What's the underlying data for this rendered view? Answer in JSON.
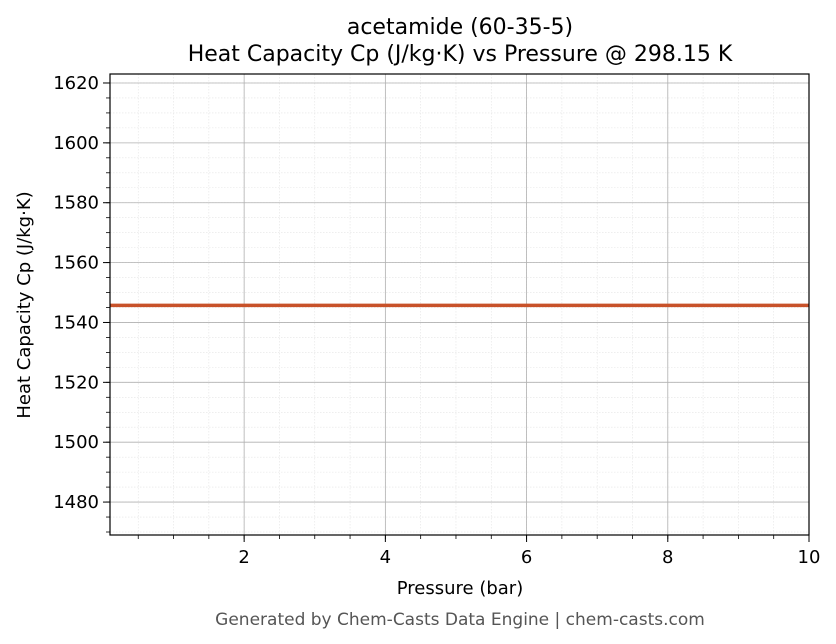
{
  "chart_data": {
    "type": "line",
    "title": "acetamide (60-35-5)",
    "subtitle": "Heat Capacity Cp (J/kg·K) vs Pressure @ 298.15 K",
    "xlabel": "Pressure (bar)",
    "ylabel": "Heat Capacity Cp (J/kg·K)",
    "xlim": [
      0.1,
      10
    ],
    "ylim": [
      1469,
      1623
    ],
    "xticks": [
      2,
      4,
      6,
      8,
      10
    ],
    "yticks": [
      1480,
      1500,
      1520,
      1540,
      1560,
      1580,
      1600,
      1620
    ],
    "grid": true,
    "series": [
      {
        "color": "#c8522a",
        "x": [
          0.1,
          10
        ],
        "y": [
          1545.7,
          1545.7
        ]
      }
    ]
  },
  "footer": "Generated by Chem-Casts Data Engine | chem-casts.com"
}
